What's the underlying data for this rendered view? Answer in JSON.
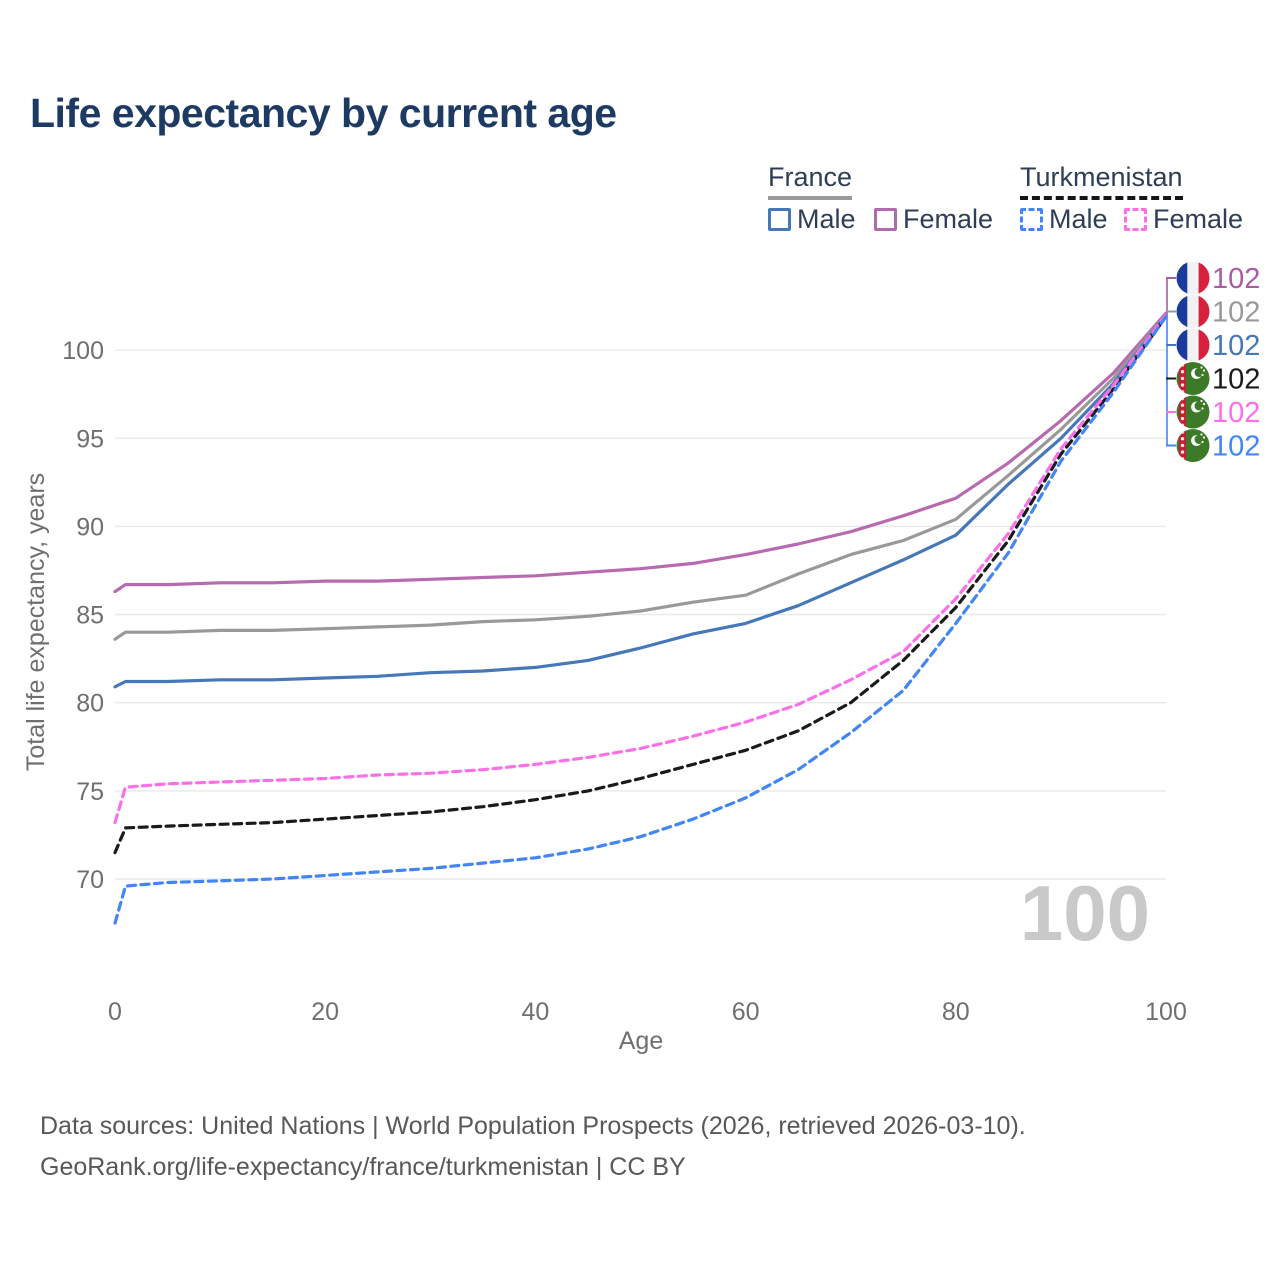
{
  "title": "Life expectancy by current age",
  "legend": {
    "groups": [
      {
        "country": "France",
        "line_style": "solid",
        "underline_color": "#9a9a9a",
        "items": [
          {
            "label": "Male",
            "color": "#4677b8",
            "dashed": false
          },
          {
            "label": "Female",
            "color": "#b06aae",
            "dashed": false
          }
        ]
      },
      {
        "country": "Turkmenistan",
        "line_style": "dashed",
        "underline_color": "#151515",
        "items": [
          {
            "label": "Male",
            "color": "#4285f4",
            "dashed": true
          },
          {
            "label": "Female",
            "color": "#fb70e9",
            "dashed": true
          }
        ]
      }
    ]
  },
  "footer": {
    "line1": "Data sources: United Nations | World Population Prospects (2026, retrieved 2026-03-10).",
    "line2": "GeoRank.org/life-expectancy/france/turkmenistan | CC BY"
  },
  "chart_data": {
    "type": "line",
    "title": "Life expectancy by current age",
    "xlabel": "Age",
    "ylabel": "Total life expectancy, years",
    "xticks": [
      0,
      20,
      40,
      60,
      80,
      100
    ],
    "yticks": [
      70,
      75,
      80,
      85,
      90,
      95,
      100
    ],
    "xlim": [
      0,
      100
    ],
    "ylim": [
      67,
      103
    ],
    "grid": "horizontal-only",
    "watermark": "100",
    "x": [
      0,
      1,
      5,
      10,
      15,
      20,
      25,
      30,
      35,
      40,
      45,
      50,
      55,
      60,
      65,
      70,
      75,
      80,
      85,
      90,
      95,
      100
    ],
    "series": [
      {
        "id": "france-female",
        "name": "France — Female",
        "color": "#b76ab0",
        "dashed": false,
        "values": [
          86.3,
          86.7,
          86.7,
          86.8,
          86.8,
          86.9,
          86.9,
          87.0,
          87.1,
          87.2,
          87.4,
          87.6,
          87.9,
          88.4,
          89.0,
          89.7,
          90.6,
          91.6,
          93.6,
          96.0,
          98.7,
          102.1
        ]
      },
      {
        "id": "france-both",
        "name": "France — Both sexes",
        "color": "#999999",
        "dashed": false,
        "values": [
          83.6,
          84.0,
          84.0,
          84.1,
          84.1,
          84.2,
          84.3,
          84.4,
          84.6,
          84.7,
          84.9,
          85.2,
          85.7,
          86.1,
          87.3,
          88.4,
          89.2,
          90.4,
          92.9,
          95.5,
          98.4,
          102.0
        ]
      },
      {
        "id": "france-male",
        "name": "France — Male",
        "color": "#4677b8",
        "dashed": false,
        "values": [
          80.9,
          81.2,
          81.2,
          81.3,
          81.3,
          81.4,
          81.5,
          81.7,
          81.8,
          82.0,
          82.4,
          83.1,
          83.9,
          84.5,
          85.5,
          86.8,
          88.1,
          89.5,
          92.4,
          95.0,
          98.1,
          102.0
        ]
      },
      {
        "id": "turkmenistan-both",
        "name": "Turkmenistan — Both sexes",
        "color": "#1a1a1a",
        "dashed": true,
        "values": [
          71.5,
          72.9,
          73.0,
          73.1,
          73.2,
          73.4,
          73.6,
          73.8,
          74.1,
          74.5,
          75.0,
          75.7,
          76.5,
          77.3,
          78.4,
          80.0,
          82.4,
          85.4,
          89.2,
          94.1,
          97.8,
          101.9
        ]
      },
      {
        "id": "turkmenistan-female",
        "name": "Turkmenistan — Female",
        "color": "#fb70e9",
        "dashed": true,
        "values": [
          73.2,
          75.2,
          75.4,
          75.5,
          75.6,
          75.7,
          75.9,
          76.0,
          76.2,
          76.5,
          76.9,
          77.4,
          78.1,
          78.9,
          79.9,
          81.3,
          82.9,
          85.9,
          89.6,
          94.4,
          98.0,
          102.0
        ]
      },
      {
        "id": "turkmenistan-male",
        "name": "Turkmenistan — Male",
        "color": "#4285f4",
        "dashed": true,
        "values": [
          67.5,
          69.6,
          69.8,
          69.9,
          70.0,
          70.2,
          70.4,
          70.6,
          70.9,
          71.2,
          71.7,
          72.4,
          73.4,
          74.6,
          76.2,
          78.3,
          80.7,
          84.5,
          88.5,
          93.7,
          97.6,
          101.9
        ]
      }
    ],
    "end_labels": [
      {
        "flag": "france",
        "series": "France — Female",
        "label": "102",
        "color": "#a85da3"
      },
      {
        "flag": "france",
        "series": "France — Both sexes",
        "label": "102",
        "color": "#999999"
      },
      {
        "flag": "france",
        "series": "France — Male",
        "label": "102",
        "color": "#4677b8"
      },
      {
        "flag": "turkmenistan",
        "series": "Turkmenistan — Both sexes",
        "label": "102",
        "color": "#1a1a1a"
      },
      {
        "flag": "turkmenistan",
        "series": "Turkmenistan — Female",
        "label": "102",
        "color": "#fb70e9"
      },
      {
        "flag": "turkmenistan",
        "series": "Turkmenistan — Male",
        "label": "102",
        "color": "#4285f4"
      }
    ]
  }
}
